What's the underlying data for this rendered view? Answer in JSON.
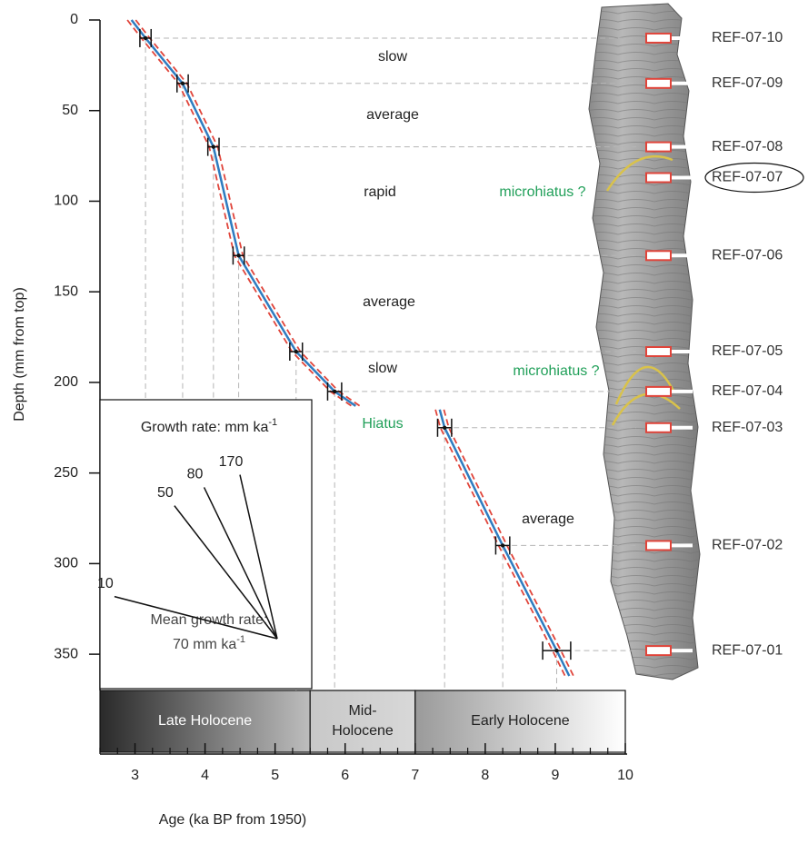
{
  "chart_data": {
    "type": "scatter",
    "xlabel": "Age (ka BP from 1950)",
    "ylabel": "Depth (mm from top)",
    "xlim": [
      2.5,
      10
    ],
    "ylim": [
      370,
      0
    ],
    "xticks": [
      3,
      4,
      5,
      6,
      7,
      8,
      9,
      10
    ],
    "xminorticks": [
      2.5,
      2.75,
      3.25,
      3.5,
      3.75,
      4.25,
      4.5,
      4.75,
      5.25,
      5.5,
      5.75,
      6.25,
      6.5,
      6.75,
      7.25,
      7.5,
      7.75,
      8.25,
      8.5,
      8.75,
      9.25,
      9.5,
      9.75
    ],
    "yticks": [
      0,
      50,
      100,
      150,
      200,
      250,
      300,
      350
    ],
    "samples": [
      {
        "label": "REF-07-10",
        "depth": 10,
        "age": 3.15,
        "error": 0.08
      },
      {
        "label": "REF-07-09",
        "depth": 35,
        "age": 3.68,
        "error": 0.08
      },
      {
        "label": "REF-07-08",
        "depth": 70,
        "age": 4.12,
        "error": 0.08
      },
      {
        "label": "REF-07-07",
        "depth": 87,
        "age": null,
        "error": null
      },
      {
        "label": "REF-07-06",
        "depth": 130,
        "age": 4.48,
        "error": 0.08
      },
      {
        "label": "REF-07-05",
        "depth": 183,
        "age": 5.3,
        "error": 0.09
      },
      {
        "label": "REF-07-04",
        "depth": 205,
        "age": 5.85,
        "error": 0.1
      },
      {
        "label": "REF-07-03",
        "depth": 225,
        "age": 7.42,
        "error": 0.1
      },
      {
        "label": "REF-07-02",
        "depth": 290,
        "age": 8.25,
        "error": 0.1
      },
      {
        "label": "REF-07-01",
        "depth": 348,
        "age": 9.02,
        "error": 0.2
      }
    ],
    "model": {
      "color": "#2e7cc0",
      "x": [
        2.95,
        3.15,
        3.68,
        4.12,
        4.48,
        5.3,
        5.85,
        6.15,
        null,
        7.35,
        7.42,
        8.25,
        9.02,
        9.2
      ],
      "y": [
        0,
        10,
        35,
        70,
        130,
        183,
        205,
        213,
        null,
        215,
        225,
        290,
        348,
        362
      ]
    },
    "bounds": [
      {
        "color": "#e0443a",
        "x": [
          2.89,
          3.09,
          3.62,
          4.06,
          4.42,
          5.24,
          5.79,
          6.09,
          null,
          7.29,
          7.36,
          8.19,
          8.96,
          9.14
        ],
        "y": [
          0,
          10,
          35,
          70,
          130,
          183,
          205,
          213,
          null,
          215,
          225,
          290,
          348,
          362
        ]
      },
      {
        "color": "#e0443a",
        "x": [
          3.01,
          3.21,
          3.74,
          4.18,
          4.54,
          5.36,
          5.91,
          6.21,
          null,
          7.41,
          7.48,
          8.31,
          9.08,
          9.26
        ],
        "y": [
          0,
          10,
          35,
          70,
          130,
          183,
          205,
          213,
          null,
          215,
          225,
          290,
          348,
          362
        ]
      }
    ],
    "annotations": [
      "slow",
      "average",
      "rapid",
      "average",
      "slow",
      "Hiatus",
      "average",
      "microhiatus ?",
      "microhiatus ?"
    ],
    "periods": [
      {
        "label": [
          "Late Holocene"
        ],
        "start": 2.5,
        "end": 5.5
      },
      {
        "label": [
          "Mid-",
          "Holocene"
        ],
        "start": 5.5,
        "end": 7
      },
      {
        "label": [
          "Early Holocene"
        ],
        "start": 7,
        "end": 10
      }
    ],
    "inset": {
      "title": "Growth rate: mm ka",
      "title_exp": "-1",
      "rates": [
        10,
        50,
        80,
        170
      ],
      "mean_title": "Mean growth rate:",
      "mean_text": "70 mm ka",
      "mean_exp": "-1"
    }
  }
}
